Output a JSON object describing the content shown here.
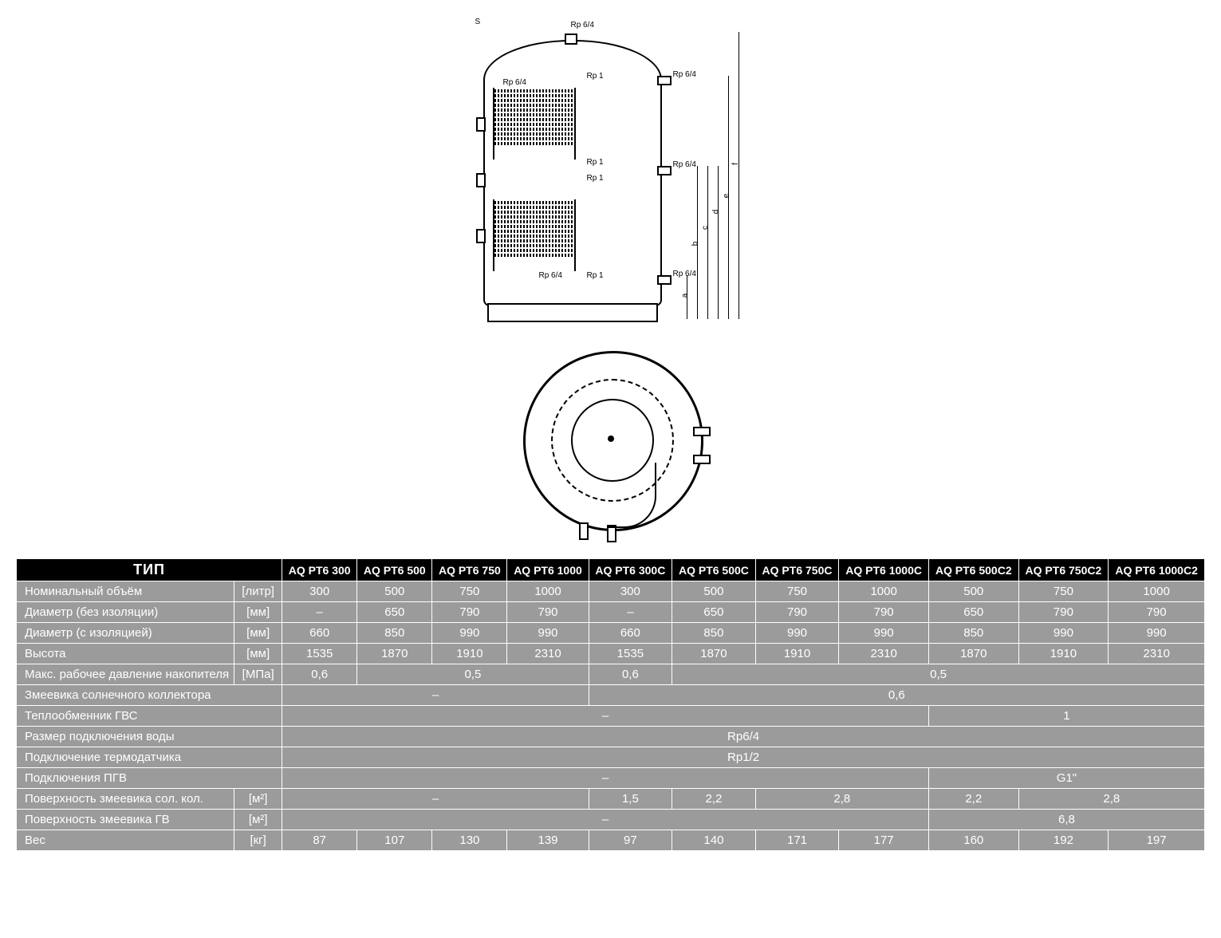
{
  "diagram": {
    "rp_top": "Rp 6/4",
    "rp_side_upper": "Rp 6/4",
    "rp_side_mid": "Rp 6/4",
    "rp_side_lower": "Rp 6/4",
    "rp1": "Rp 1",
    "rp64_inner": "Rp 6/4",
    "dims": [
      "a",
      "b",
      "c",
      "d",
      "e",
      "f"
    ],
    "s_label": "S"
  },
  "table": {
    "header_type": "ТИП",
    "models": [
      "AQ PT6 300",
      "AQ PT6 500",
      "AQ PT6 750",
      "AQ PT6 1000",
      "AQ PT6 300C",
      "AQ PT6 500C",
      "AQ PT6 750C",
      "AQ PT6 1000C",
      "AQ PT6 500C2",
      "AQ PT6 750C2",
      "AQ PT6 1000C2"
    ],
    "rows": [
      {
        "label": "Номинальный объём",
        "unit": "[литр]",
        "cells": [
          [
            "300"
          ],
          [
            "500"
          ],
          [
            "750"
          ],
          [
            "1000"
          ],
          [
            "300"
          ],
          [
            "500"
          ],
          [
            "750"
          ],
          [
            "1000"
          ],
          [
            "500"
          ],
          [
            "750"
          ],
          [
            "1000"
          ]
        ]
      },
      {
        "label": "Диаметр (без изоляции)",
        "unit": "[мм]",
        "cells": [
          [
            "–"
          ],
          [
            "650"
          ],
          [
            "790"
          ],
          [
            "790"
          ],
          [
            "–"
          ],
          [
            "650"
          ],
          [
            "790"
          ],
          [
            "790"
          ],
          [
            "650"
          ],
          [
            "790"
          ],
          [
            "790"
          ]
        ]
      },
      {
        "label": "Диаметр (с изоляцией)",
        "unit": "[мм]",
        "cells": [
          [
            "660"
          ],
          [
            "850"
          ],
          [
            "990"
          ],
          [
            "990"
          ],
          [
            "660"
          ],
          [
            "850"
          ],
          [
            "990"
          ],
          [
            "990"
          ],
          [
            "850"
          ],
          [
            "990"
          ],
          [
            "990"
          ]
        ]
      },
      {
        "label": "Высота",
        "unit": "[мм]",
        "cells": [
          [
            "1535"
          ],
          [
            "1870"
          ],
          [
            "1910"
          ],
          [
            "2310"
          ],
          [
            "1535"
          ],
          [
            "1870"
          ],
          [
            "1910"
          ],
          [
            "2310"
          ],
          [
            "1870"
          ],
          [
            "1910"
          ],
          [
            "2310"
          ]
        ]
      },
      {
        "label": "Макс. рабочее давление накопителя",
        "unit": "[МПа]",
        "spans": [
          {
            "v": "0,6",
            "c": 1
          },
          {
            "v": "0,5",
            "c": 3
          },
          {
            "v": "0,6",
            "c": 1
          },
          {
            "v": "0,5",
            "c": 6
          }
        ]
      },
      {
        "label": "Змеевика солнечного коллектора",
        "unit": "",
        "spans": [
          {
            "v": "–",
            "c": 4
          },
          {
            "v": "0,6",
            "c": 7
          }
        ]
      },
      {
        "label": "Теплообменник ГВС",
        "unit": "",
        "spans": [
          {
            "v": "–",
            "c": 8
          },
          {
            "v": "1",
            "c": 3
          }
        ]
      },
      {
        "label": "Размер подключения воды",
        "unit": "",
        "spans": [
          {
            "v": "Rp6/4",
            "c": 11
          }
        ]
      },
      {
        "label": "Подключение термодатчика",
        "unit": "",
        "spans": [
          {
            "v": "Rp1/2",
            "c": 11
          }
        ]
      },
      {
        "label": "Подключения ПГВ",
        "unit": "",
        "spans": [
          {
            "v": "–",
            "c": 8
          },
          {
            "v": "G1\"",
            "c": 3
          }
        ]
      },
      {
        "label": "Поверхность змеевика сол. кол.",
        "unit": "[м²]",
        "spans": [
          {
            "v": "–",
            "c": 4
          },
          {
            "v": "1,5",
            "c": 1
          },
          {
            "v": "2,2",
            "c": 1
          },
          {
            "v": "2,8",
            "c": 2
          },
          {
            "v": "2,2",
            "c": 1
          },
          {
            "v": "2,8",
            "c": 2
          }
        ]
      },
      {
        "label": "Поверхность змеевика ГВ",
        "unit": "[м²]",
        "spans": [
          {
            "v": "–",
            "c": 8
          },
          {
            "v": "6,8",
            "c": 3
          }
        ]
      },
      {
        "label": "Вес",
        "unit": "[кг]",
        "cells": [
          [
            "87"
          ],
          [
            "107"
          ],
          [
            "130"
          ],
          [
            "139"
          ],
          [
            "97"
          ],
          [
            "140"
          ],
          [
            "171"
          ],
          [
            "177"
          ],
          [
            "160"
          ],
          [
            "192"
          ],
          [
            "197"
          ]
        ]
      }
    ]
  },
  "colors": {
    "header_bg": "#000000",
    "header_fg": "#ffffff",
    "cell_bg": "#9b9b9b",
    "cell_fg": "#ffffff",
    "border": "#ffffff"
  }
}
